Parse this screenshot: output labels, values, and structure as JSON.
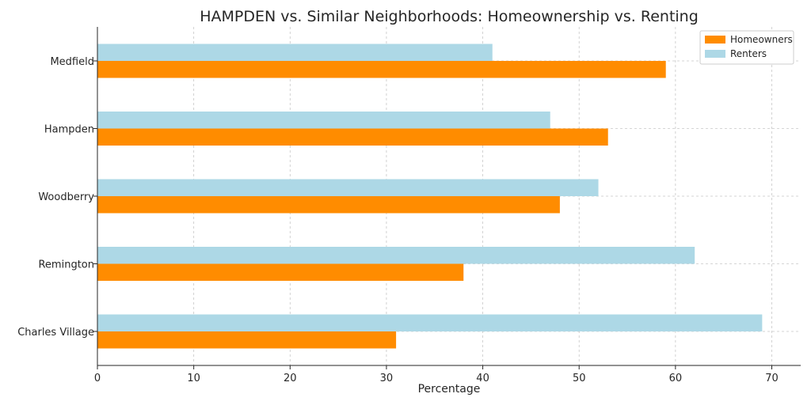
{
  "chart_data": {
    "type": "bar",
    "orientation": "horizontal",
    "title": "HAMPDEN vs. Similar Neighborhoods: Homeownership vs. Renting",
    "xlabel": "Percentage",
    "ylabel": "",
    "xlim": [
      0,
      73
    ],
    "x_ticks": [
      0,
      10,
      20,
      30,
      40,
      50,
      60,
      70
    ],
    "categories": [
      "Medfield",
      "Hampden",
      "Woodberry",
      "Remington",
      "Charles Village"
    ],
    "series": [
      {
        "name": "Homeowners",
        "color": "#ff8c00",
        "values": [
          59,
          53,
          48,
          38,
          31
        ]
      },
      {
        "name": "Renters",
        "color": "#add8e6",
        "values": [
          41,
          47,
          52,
          62,
          69
        ]
      }
    ],
    "grid": true,
    "legend_position": "top-right"
  }
}
